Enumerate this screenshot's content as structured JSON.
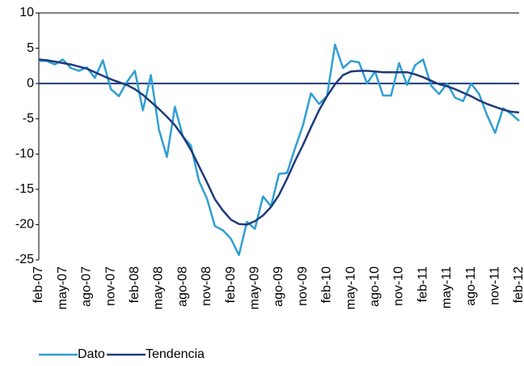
{
  "chart_data": {
    "type": "line",
    "categories": [
      "feb-07",
      null,
      null,
      "may-07",
      null,
      null,
      "ago-07",
      null,
      null,
      "nov-07",
      null,
      null,
      "feb-08",
      null,
      null,
      "may-08",
      null,
      null,
      "ago-08",
      null,
      null,
      "nov-08",
      null,
      null,
      "feb-09",
      null,
      null,
      "may-09",
      null,
      null,
      "ago-09",
      null,
      null,
      "nov-09",
      null,
      null,
      "feb-10",
      null,
      null,
      "may-10",
      null,
      null,
      "ago-10",
      null,
      null,
      "nov-10",
      null,
      null,
      "feb-11",
      null,
      null,
      "may-11",
      null,
      null,
      "ago-11",
      null,
      null,
      "nov-11",
      null,
      null,
      "feb-12"
    ],
    "series": [
      {
        "name": "Dato",
        "color": "#2f9fd3",
        "values": [
          3.2,
          3.2,
          2.7,
          3.4,
          2.2,
          1.8,
          2.3,
          0.8,
          3.3,
          -0.8,
          -1.8,
          0.2,
          1.8,
          -3.8,
          1.2,
          -6.5,
          -10.4,
          -3.3,
          -7.5,
          -8.8,
          -13.8,
          -16.3,
          -20.2,
          -20.8,
          -22.0,
          -24.3,
          -19.6,
          -20.6,
          -16.0,
          -17.4,
          -12.8,
          -12.7,
          -9.2,
          -5.9,
          -1.4,
          -2.9,
          -1.8,
          5.5,
          2.2,
          3.2,
          3.0,
          0.0,
          1.7,
          -1.7,
          -1.7,
          2.9,
          -0.2,
          2.6,
          3.4,
          -0.3,
          -1.5,
          0.0,
          -2.0,
          -2.5,
          0.0,
          -1.5,
          -4.5,
          -7.0,
          -3.5,
          -4.3,
          -5.3
        ]
      },
      {
        "name": "Tendencia",
        "color": "#1f3b7a",
        "values": [
          3.4,
          3.3,
          3.1,
          2.9,
          2.7,
          2.4,
          2.1,
          1.6,
          1.1,
          0.6,
          0.2,
          -0.2,
          -0.8,
          -1.6,
          -2.6,
          -3.6,
          -4.7,
          -5.9,
          -7.5,
          -9.4,
          -11.7,
          -14.0,
          -16.4,
          -18.0,
          -19.3,
          -19.9,
          -20.0,
          -19.5,
          -18.7,
          -17.5,
          -15.8,
          -13.5,
          -11.0,
          -8.7,
          -6.2,
          -3.8,
          -1.8,
          -0.1,
          1.2,
          1.7,
          1.8,
          1.8,
          1.7,
          1.6,
          1.6,
          1.6,
          1.6,
          1.3,
          0.9,
          0.4,
          -0.1,
          -0.4,
          -0.8,
          -1.3,
          -1.8,
          -2.4,
          -2.9,
          -3.3,
          -3.7,
          -4.0,
          -4.1
        ]
      }
    ],
    "ylim": [
      -25,
      10
    ],
    "yticks": [
      10,
      5,
      0,
      -5,
      -10,
      -15,
      -20,
      -25
    ]
  }
}
